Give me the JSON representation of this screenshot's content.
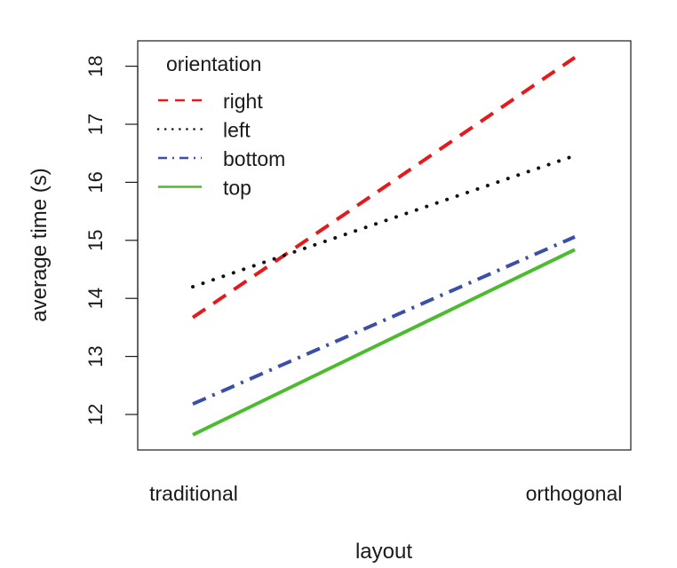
{
  "chart_data": {
    "type": "line",
    "xlabel": "layout",
    "ylabel": "average time (s)",
    "categories": [
      "traditional",
      "orthogonal"
    ],
    "ylim": [
      11.4,
      18.5
    ],
    "yticks": [
      12,
      13,
      14,
      15,
      16,
      17,
      18
    ],
    "grid": false,
    "legend": {
      "title": "orientation",
      "position": "top-left"
    },
    "series": [
      {
        "name": "right",
        "values": [
          13.67,
          18.15
        ],
        "color": "#e41a1c",
        "dash": "dashed"
      },
      {
        "name": "left",
        "values": [
          14.2,
          16.46
        ],
        "color": "#111111",
        "dash": "dotted"
      },
      {
        "name": "bottom",
        "values": [
          12.18,
          15.06
        ],
        "color": "#3a4fa8",
        "dash": "dashdot"
      },
      {
        "name": "top",
        "values": [
          11.65,
          14.84
        ],
        "color": "#4dbb2f",
        "dash": "solid"
      }
    ]
  }
}
